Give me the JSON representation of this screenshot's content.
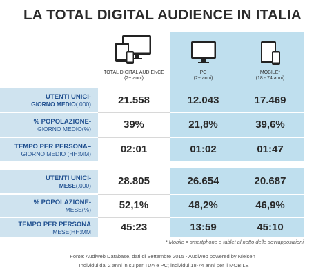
{
  "title": "LA TOTAL DIGITAL AUDIENCE IN ITALIA",
  "columns": [
    {
      "label": "TOTAL DIGITAL AUDIENCE",
      "sub": "(2+ anni)",
      "icon": "devices-icon"
    },
    {
      "label": "PC",
      "sub": "(2+ anni)",
      "icon": "monitor-icon"
    },
    {
      "label": "MOBILE*",
      "sub": "(18 - 74 anni)",
      "icon": "tablet-phone-icon"
    }
  ],
  "rows": [
    {
      "l1": "UTENTI UNICI-",
      "l2a": "GIORNO MEDIO",
      "l2b": "(.000)",
      "values": [
        "21.558",
        "12.043",
        "17.469"
      ]
    },
    {
      "l1": "% POPOLAZIONE-",
      "l2": "GIORNO MEDIO(%)",
      "values": [
        "39%",
        "21,8%",
        "39,6%"
      ]
    },
    {
      "l1": "TEMPO PER PERSONA–",
      "l2": "GIORNO MEDIO (HH:MM)",
      "values": [
        "02:01",
        "01:02",
        "01:47"
      ]
    },
    {
      "l1": "UTENTI UNICI-",
      "l2a": "MESE",
      "l2b": "(.000)",
      "values": [
        "28.805",
        "26.654",
        "20.687"
      ]
    },
    {
      "l1": "% POPOLAZIONE-",
      "l2": "MESE(%)",
      "values": [
        "52,1%",
        "48,2%",
        "46,9%"
      ]
    },
    {
      "l1": "TEMPO PER PERSONA",
      "l2": "MESE(HH:MM",
      "values": [
        "45:23",
        "13:59",
        "45:10"
      ]
    }
  ],
  "footnote": "* Mobile = smartphone e tablet al netto delle sovrapposizioni",
  "source_line1": "Fonte: Audiweb Database, dati di Settembre 2015 - Audiweb powered by Nielsen",
  "source_line2": ", Individui dai 2 anni in su  per TDA e PC; individui 18-74 anni per il MOBILE",
  "colors": {
    "label_bg": "#cfe3ef",
    "label_text": "#1f4f8f",
    "panel": "#bfdfee"
  }
}
